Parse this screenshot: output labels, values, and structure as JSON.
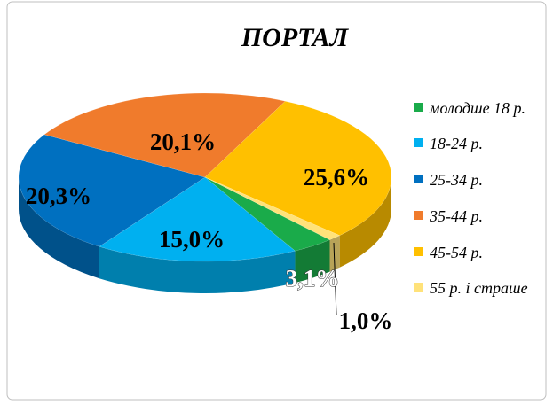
{
  "chart_data": {
    "type": "pie",
    "title": "ПОРТАЛ",
    "categories": [
      "молодше 18 р.",
      "18-24 р.",
      "25-34 р.",
      "35-44 р.",
      "45-54 р.",
      "55 р. і страше"
    ],
    "values": [
      3.1,
      15.0,
      20.3,
      20.1,
      25.6,
      1.0
    ],
    "value_labels": [
      "3,1%",
      "15,0%",
      "20,3%",
      "20,1%",
      "25,6%",
      "1,0%"
    ],
    "colors": [
      "#1aab4a",
      "#00b0f0",
      "#0070c0",
      "#f07b2c",
      "#ffc000",
      "#ffe27a"
    ],
    "legend": "right"
  }
}
